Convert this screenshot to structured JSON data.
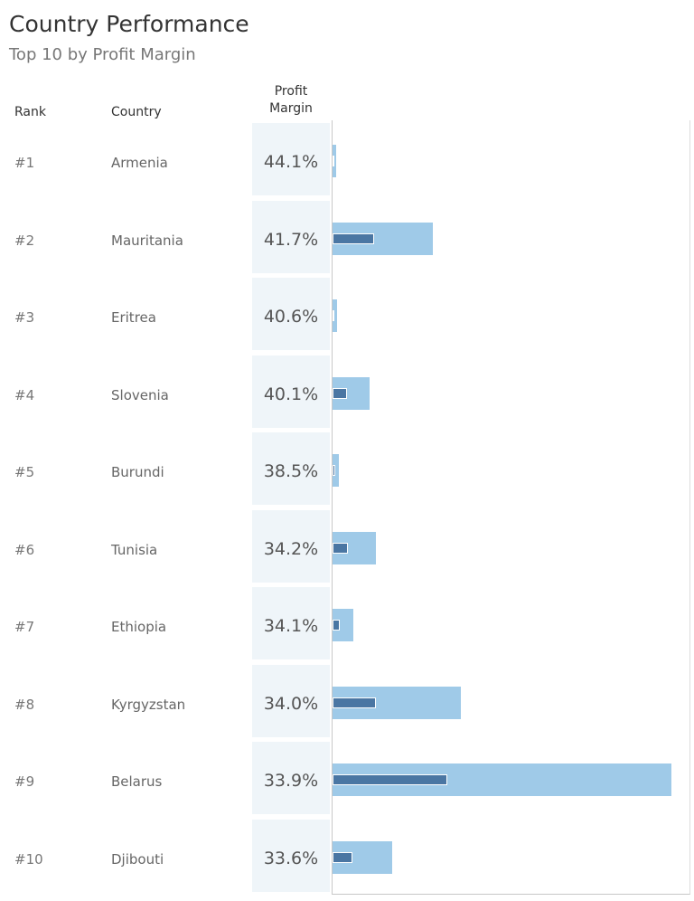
{
  "header": {
    "title": "Country Performance",
    "subtitle": "Top 10 by Profit Margin",
    "columns": {
      "rank": "Rank",
      "country": "Country",
      "margin_line1": "Profit",
      "margin_line2": "Margin"
    }
  },
  "chart_data": {
    "type": "table",
    "title": "Country Performance",
    "subtitle": "Top 10 by Profit Margin",
    "columns": [
      "Rank",
      "Country",
      "Profit Margin"
    ],
    "bar_scale_max": 100,
    "rows": [
      {
        "rank": "#1",
        "country": "Armenia",
        "margin": "44.1%",
        "bar_outer": 1.0,
        "bar_inner": 0.5
      },
      {
        "rank": "#2",
        "country": "Mauritania",
        "margin": "41.7%",
        "bar_outer": 29.5,
        "bar_inner": 12.3
      },
      {
        "rank": "#3",
        "country": "Eritrea",
        "margin": "40.6%",
        "bar_outer": 1.2,
        "bar_inner": 0.5
      },
      {
        "rank": "#4",
        "country": "Slovenia",
        "margin": "40.1%",
        "bar_outer": 10.9,
        "bar_inner": 4.3
      },
      {
        "rank": "#5",
        "country": "Burundi",
        "margin": "38.5%",
        "bar_outer": 1.9,
        "bar_inner": 0.8
      },
      {
        "rank": "#6",
        "country": "Tunisia",
        "margin": "34.2%",
        "bar_outer": 12.8,
        "bar_inner": 4.5
      },
      {
        "rank": "#7",
        "country": "Ethiopia",
        "margin": "34.1%",
        "bar_outer": 6.1,
        "bar_inner": 2.1
      },
      {
        "rank": "#8",
        "country": "Kyrgyzstan",
        "margin": "34.0%",
        "bar_outer": 37.9,
        "bar_inner": 12.8
      },
      {
        "rank": "#9",
        "country": "Belarus",
        "margin": "33.9%",
        "bar_outer": 100,
        "bar_inner": 33.9
      },
      {
        "rank": "#10",
        "country": "Djibouti",
        "margin": "33.6%",
        "bar_outer": 17.6,
        "bar_inner": 5.9
      }
    ]
  }
}
